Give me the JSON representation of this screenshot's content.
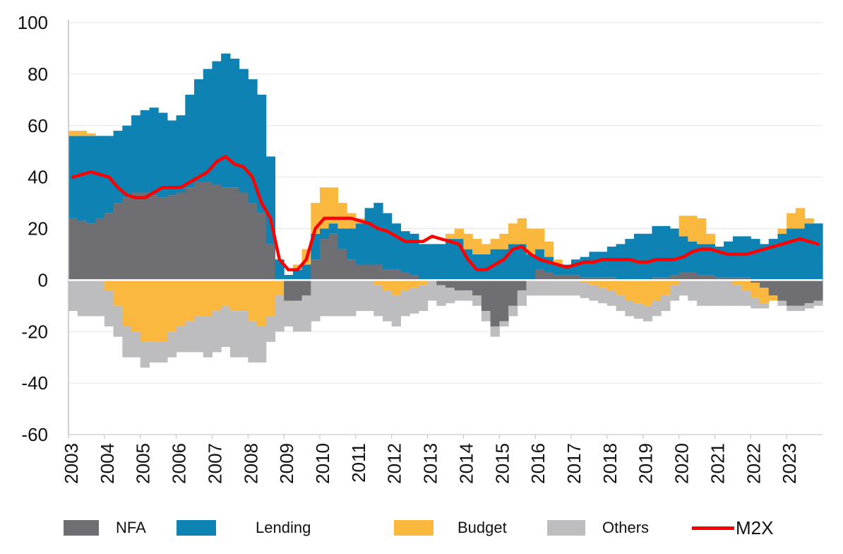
{
  "chart_data": {
    "type": "bar",
    "stacked": true,
    "title": "",
    "xlabel": "",
    "ylabel": "",
    "ylim": [
      -60,
      100
    ],
    "yticks": [
      100,
      80,
      60,
      40,
      20,
      0,
      -20,
      -40,
      -60
    ],
    "xticks": [
      "2003",
      "2004",
      "2005",
      "2006",
      "2007",
      "2008",
      "2009",
      "2010",
      "2011",
      "2012",
      "2013",
      "2014",
      "2015",
      "2016",
      "2017",
      "2018",
      "2019",
      "2020",
      "2021",
      "2022",
      "2023"
    ],
    "grid": "horizontal",
    "legend_position": "bottom",
    "x": [
      2003.0,
      2003.25,
      2003.5,
      2003.75,
      2004.0,
      2004.25,
      2004.5,
      2004.75,
      2005.0,
      2005.25,
      2005.5,
      2005.75,
      2006.0,
      2006.25,
      2006.5,
      2006.75,
      2007.0,
      2007.25,
      2007.5,
      2007.75,
      2008.0,
      2008.25,
      2008.5,
      2008.75,
      2009.0,
      2009.25,
      2009.5,
      2009.75,
      2010.0,
      2010.25,
      2010.5,
      2010.75,
      2011.0,
      2011.25,
      2011.5,
      2011.75,
      2012.0,
      2012.25,
      2012.5,
      2012.75,
      2013.0,
      2013.25,
      2013.5,
      2013.75,
      2014.0,
      2014.25,
      2014.5,
      2014.75,
      2015.0,
      2015.25,
      2015.5,
      2015.75,
      2016.0,
      2016.25,
      2016.5,
      2016.75,
      2017.0,
      2017.25,
      2017.5,
      2017.75,
      2018.0,
      2018.25,
      2018.5,
      2018.75,
      2019.0,
      2019.25,
      2019.5,
      2019.75,
      2020.0,
      2020.25,
      2020.5,
      2020.75,
      2021.0,
      2021.25,
      2021.5,
      2021.75,
      2022.0,
      2022.25,
      2022.5,
      2022.75,
      2023.0,
      2023.25,
      2023.5,
      2023.75
    ],
    "series": [
      {
        "name": "NFA",
        "color": "#6e6e73",
        "type": "bar",
        "values": [
          24,
          23,
          22,
          24,
          26,
          30,
          32,
          34,
          34,
          33,
          32,
          33,
          34,
          36,
          38,
          38,
          37,
          36,
          36,
          34,
          30,
          26,
          14,
          0,
          -8,
          -8,
          -6,
          8,
          16,
          18,
          12,
          8,
          6,
          6,
          6,
          4,
          4,
          3,
          2,
          0,
          0,
          -2,
          -3,
          -4,
          -4,
          -6,
          -12,
          -18,
          -16,
          -10,
          -4,
          0,
          4,
          3,
          2,
          2,
          2,
          1,
          1,
          1,
          1,
          0,
          0,
          0,
          0,
          1,
          1,
          2,
          3,
          3,
          2,
          2,
          1,
          1,
          1,
          1,
          -1,
          -3,
          -6,
          -8,
          -10,
          -10,
          -9,
          -8
        ]
      },
      {
        "name": "Lending",
        "color": "#0f82b4",
        "type": "bar",
        "values": [
          32,
          33,
          34,
          32,
          30,
          28,
          28,
          30,
          32,
          34,
          33,
          29,
          30,
          36,
          40,
          44,
          48,
          52,
          50,
          48,
          48,
          46,
          34,
          8,
          2,
          4,
          6,
          10,
          4,
          4,
          8,
          12,
          16,
          22,
          24,
          22,
          18,
          16,
          16,
          14,
          14,
          14,
          16,
          16,
          12,
          10,
          10,
          12,
          12,
          14,
          14,
          10,
          8,
          6,
          4,
          4,
          6,
          8,
          10,
          10,
          12,
          14,
          16,
          18,
          18,
          20,
          20,
          18,
          14,
          12,
          12,
          12,
          12,
          14,
          16,
          16,
          16,
          14,
          16,
          18,
          20,
          20,
          22,
          22
        ]
      },
      {
        "name": "Budget",
        "color": "#fbb83f",
        "type": "bar",
        "values": [
          2,
          2,
          1,
          0,
          -4,
          -10,
          -18,
          -20,
          -24,
          -24,
          -24,
          -20,
          -18,
          -16,
          -14,
          -14,
          -12,
          -10,
          -12,
          -12,
          -16,
          -18,
          -14,
          -6,
          0,
          2,
          6,
          12,
          16,
          14,
          10,
          6,
          2,
          0,
          -2,
          -4,
          -6,
          -4,
          -3,
          -2,
          0,
          0,
          2,
          4,
          6,
          6,
          4,
          4,
          6,
          8,
          10,
          10,
          8,
          6,
          2,
          0,
          0,
          -1,
          -2,
          -3,
          -4,
          -6,
          -8,
          -9,
          -10,
          -8,
          -6,
          -2,
          8,
          10,
          10,
          4,
          0,
          0,
          -2,
          -4,
          -6,
          -6,
          -2,
          2,
          6,
          8,
          2,
          0
        ]
      },
      {
        "name": "Others",
        "color": "#bdbdbf",
        "type": "bar",
        "values": [
          -12,
          -14,
          -14,
          -14,
          -14,
          -12,
          -12,
          -10,
          -10,
          -8,
          -8,
          -10,
          -10,
          -12,
          -14,
          -16,
          -16,
          -16,
          -18,
          -18,
          -16,
          -14,
          -10,
          -14,
          -10,
          -12,
          -14,
          -16,
          -14,
          -14,
          -14,
          -14,
          -12,
          -12,
          -12,
          -12,
          -12,
          -10,
          -10,
          -10,
          -8,
          -8,
          -6,
          -4,
          -4,
          -4,
          -4,
          -4,
          -2,
          -4,
          -6,
          -6,
          -6,
          -6,
          -6,
          -6,
          -6,
          -6,
          -6,
          -6,
          -6,
          -6,
          -6,
          -6,
          -6,
          -6,
          -6,
          -6,
          -6,
          -8,
          -10,
          -10,
          -10,
          -10,
          -8,
          -6,
          -4,
          -2,
          0,
          -2,
          -2,
          -2,
          -2,
          -2
        ]
      },
      {
        "name": "M2X",
        "color": "#ff0000",
        "type": "line",
        "values": [
          40,
          41,
          42,
          41,
          40,
          36,
          33,
          32,
          32,
          34,
          36,
          36,
          36,
          38,
          40,
          42,
          46,
          48,
          45,
          44,
          40,
          30,
          24,
          8,
          4,
          4,
          8,
          20,
          24,
          24,
          24,
          24,
          23,
          22,
          20,
          19,
          17,
          15,
          15,
          15,
          17,
          16,
          15,
          14,
          8,
          4,
          4,
          6,
          8,
          12,
          13,
          10,
          8,
          7,
          6,
          5,
          6,
          7,
          7,
          8,
          8,
          8,
          8,
          7,
          7,
          8,
          8,
          8,
          9,
          11,
          12,
          12,
          11,
          10,
          10,
          10,
          11,
          12,
          13,
          14,
          15,
          16,
          15,
          14
        ]
      }
    ]
  },
  "legend": [
    {
      "label": "NFA",
      "color": "#6e6e73",
      "kind": "swatch"
    },
    {
      "label": "Lending",
      "color": "#0f82b4",
      "kind": "swatch"
    },
    {
      "label": "Budget",
      "color": "#fbb83f",
      "kind": "swatch"
    },
    {
      "label": "Others",
      "color": "#bdbdbf",
      "kind": "swatch"
    },
    {
      "label": "M2X",
      "color": "#ff0000",
      "kind": "line"
    }
  ]
}
